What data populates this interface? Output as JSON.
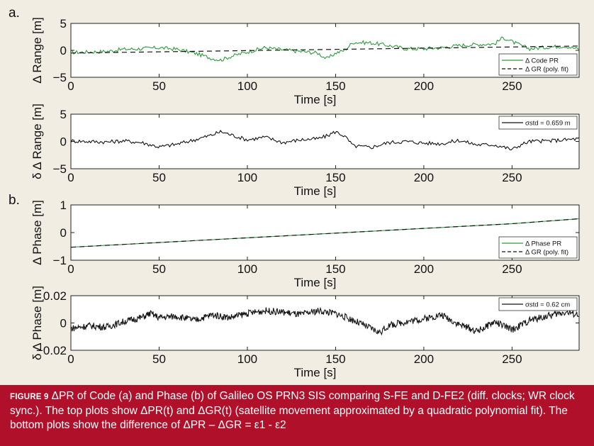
{
  "panel_letters": [
    "a.",
    "b."
  ],
  "caption": {
    "label": "FIGURE 9",
    "text": "ΔPR of Code (a) and Phase (b) of Galileo OS PRN3 SIS comparing S-FE and D-FE2 (diff. clocks; WR clock sync.). The top plots show ΔPR(t) and ΔGR(t) (satellite movement approximated by a quadratic polynomial fit). The bottom plots show the difference of ΔPR – ΔGR = ε1 - ε2"
  },
  "colors": {
    "green": "#2e9a3c",
    "black": "#111111",
    "caption_bg": "#b0102a"
  },
  "chart_data": [
    {
      "type": "line",
      "xlabel": "Time [s]",
      "ylabel": "Δ Range [m]",
      "xlim": [
        0,
        288
      ],
      "ylim": [
        -5,
        5
      ],
      "xticks": [
        0,
        50,
        100,
        150,
        200,
        250
      ],
      "yticks": [
        5,
        0,
        -5
      ],
      "ytick_labels": [
        "5",
        "0",
        "−5"
      ],
      "legend_position": "bottom-right",
      "series": [
        {
          "name": "Δ Code PR",
          "style": "solid",
          "color": "#2e9a3c",
          "x": [
            0,
            10,
            20,
            30,
            40,
            50,
            60,
            70,
            80,
            85,
            90,
            100,
            110,
            120,
            130,
            140,
            145,
            150,
            155,
            160,
            170,
            180,
            190,
            200,
            210,
            220,
            230,
            240,
            245,
            250,
            255,
            260,
            270,
            280,
            288
          ],
          "y": [
            -0.4,
            -0.3,
            -0.2,
            0.2,
            0.3,
            0.5,
            0.2,
            -0.5,
            -1.5,
            -1.8,
            -1.2,
            -0.3,
            0.5,
            0.1,
            -0.2,
            -0.5,
            -1.6,
            -0.5,
            0.0,
            1.5,
            1.4,
            0.9,
            0.3,
            0.3,
            0.5,
            0.9,
            1.1,
            1.2,
            2.4,
            1.6,
            0.9,
            0.3,
            0.6,
            0.8,
            0.2
          ]
        },
        {
          "name": "Δ GR (poly. fit)",
          "style": "dashed",
          "color": "#111111",
          "x": [
            0,
            288
          ],
          "y": [
            -0.5,
            0.8
          ]
        }
      ]
    },
    {
      "type": "line",
      "xlabel": "Time [s]",
      "ylabel": "δ Δ Range [m]",
      "xlim": [
        0,
        288
      ],
      "ylim": [
        -5,
        5
      ],
      "xticks": [
        0,
        50,
        100,
        150,
        200,
        250
      ],
      "yticks": [
        5,
        0,
        -5
      ],
      "ytick_labels": [
        "5",
        "0",
        "−5"
      ],
      "legend_position": "top-right",
      "series": [
        {
          "name": "σstd = 0.659 m",
          "style": "solid",
          "color": "#111111",
          "x": [
            0,
            10,
            20,
            30,
            40,
            50,
            60,
            70,
            80,
            85,
            90,
            100,
            110,
            120,
            130,
            140,
            145,
            150,
            155,
            160,
            170,
            180,
            190,
            200,
            210,
            220,
            230,
            240,
            245,
            250,
            255,
            260,
            270,
            280,
            288
          ],
          "y": [
            0.1,
            0.0,
            -0.1,
            0.1,
            -0.2,
            -1.0,
            -0.5,
            0.3,
            1.2,
            1.8,
            1.3,
            0.3,
            0.8,
            -0.2,
            0.3,
            0.5,
            1.0,
            1.8,
            1.0,
            -0.8,
            -1.1,
            -0.2,
            0.0,
            -0.3,
            -0.4,
            0.2,
            -0.6,
            -0.6,
            -1.0,
            -1.5,
            -0.6,
            0.0,
            0.1,
            0.3,
            0.5
          ]
        }
      ]
    },
    {
      "type": "line",
      "xlabel": "Time [s]",
      "ylabel": "Δ Phase [m]",
      "xlim": [
        0,
        288
      ],
      "ylim": [
        -1,
        1
      ],
      "xticks": [
        0,
        50,
        100,
        150,
        200,
        250
      ],
      "yticks": [
        1,
        0,
        -1
      ],
      "ytick_labels": [
        "1",
        "0",
        "−1"
      ],
      "legend_position": "bottom-right",
      "series": [
        {
          "name": "Δ Phase PR",
          "style": "solid",
          "color": "#2e9a3c",
          "x": [
            0,
            50,
            100,
            150,
            200,
            250,
            288
          ],
          "y": [
            -0.53,
            -0.36,
            -0.19,
            -0.02,
            0.15,
            0.32,
            0.5
          ]
        },
        {
          "name": "Δ GR (poly. fit)",
          "style": "dashed",
          "color": "#111111",
          "x": [
            0,
            50,
            100,
            150,
            200,
            250,
            288
          ],
          "y": [
            -0.53,
            -0.36,
            -0.19,
            -0.02,
            0.15,
            0.32,
            0.5
          ]
        }
      ]
    },
    {
      "type": "line",
      "xlabel": "Time [s]",
      "ylabel": "δ Δ Phase [m]",
      "xlim": [
        0,
        288
      ],
      "ylim": [
        -0.02,
        0.02
      ],
      "xticks": [
        0,
        50,
        100,
        150,
        200,
        250
      ],
      "yticks": [
        0.02,
        0,
        -0.02
      ],
      "ytick_labels": [
        "0.02",
        "0",
        "−0.02"
      ],
      "legend_position": "top-right",
      "series": [
        {
          "name": "σstd = 0.62 cm",
          "style": "solid",
          "color": "#111111",
          "x": [
            0,
            10,
            20,
            30,
            40,
            45,
            50,
            60,
            70,
            80,
            90,
            100,
            110,
            120,
            130,
            140,
            150,
            160,
            170,
            175,
            180,
            190,
            200,
            210,
            220,
            230,
            235,
            240,
            250,
            260,
            270,
            280,
            288
          ],
          "y": [
            -0.004,
            -0.002,
            -0.003,
            0.001,
            0.004,
            0.007,
            0.004,
            0.005,
            0.002,
            0.006,
            0.004,
            0.007,
            0.009,
            0.008,
            0.006,
            0.009,
            0.007,
            0.002,
            -0.004,
            -0.007,
            -0.002,
            0.001,
            0.003,
            0.006,
            -0.001,
            -0.006,
            -0.003,
            0.001,
            -0.005,
            0.002,
            0.005,
            0.008,
            0.006
          ]
        }
      ]
    }
  ]
}
